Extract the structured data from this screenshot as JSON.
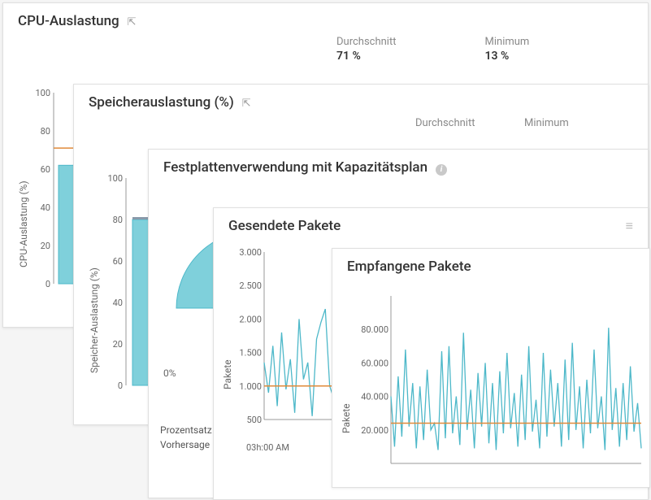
{
  "colors": {
    "series": "#4db8c9",
    "series_fill": "#7fd0db",
    "avg_line": "#e08a3a",
    "axis": "#999999",
    "bg": "#ffffff"
  },
  "card_cpu": {
    "title": "CPU-Auslastung",
    "stats": {
      "avg_label": "Durchschnitt",
      "avg_value": "71 %",
      "min_label": "Minimum",
      "min_value": "13 %"
    },
    "ylabel": "CPU-Auslastung (%)",
    "chart": {
      "type": "bar",
      "ylim": [
        0,
        100
      ],
      "yticks": [
        0,
        20,
        40,
        60,
        80,
        100
      ],
      "bar_value": 62,
      "avg_line": 71
    }
  },
  "card_mem": {
    "title": "Speicherauslastung (%)",
    "stats": {
      "avg_label": "Durchschnitt",
      "min_label": "Minimum"
    },
    "ylabel": "Speicher-Auslastung (%)",
    "chart": {
      "type": "bar",
      "ylim": [
        0,
        100
      ],
      "yticks": [
        0,
        20,
        40,
        60,
        80,
        100
      ],
      "bar_value": 80
    }
  },
  "card_disk": {
    "title": "Festplattenverwendung mit Kapazitätsplan",
    "zero_pct": "0%",
    "legend1": "Prozentsatz",
    "legend2": "Vorhersage"
  },
  "card_sent": {
    "title": "Gesendete Pakete",
    "ylabel": "Pakete",
    "chart": {
      "type": "line",
      "ylim": [
        500,
        3000
      ],
      "yticks": [
        500,
        1000,
        1500,
        2000,
        2500,
        3000
      ],
      "avg_line": 1000,
      "values": [
        1350,
        900,
        1600,
        700,
        1800,
        950,
        1400,
        600,
        2000,
        1100,
        1350,
        550,
        1700,
        1950,
        2150,
        1000,
        800
      ]
    },
    "xtick": "03h:00 AM"
  },
  "card_recv": {
    "title": "Empfangene Pakete",
    "ylabel": "Pakete",
    "chart": {
      "type": "line",
      "ylim": [
        0,
        100000
      ],
      "yticks": [
        20000,
        40000,
        60000,
        80000
      ],
      "ytick_labels": [
        "20.000",
        "40.000",
        "60.000",
        "80.000"
      ],
      "avg_line": 24000,
      "values": [
        40000,
        10000,
        52000,
        16000,
        68000,
        22000,
        48000,
        9000,
        46000,
        14000,
        56000,
        20000,
        24000,
        8000,
        67000,
        15000,
        70000,
        18000,
        40000,
        11000,
        78000,
        20000,
        44000,
        9000,
        54000,
        22000,
        60000,
        12000,
        48000,
        8000,
        55000,
        18000,
        66000,
        21000,
        42000,
        10000,
        53000,
        14000,
        70000,
        19000,
        38000,
        9000,
        66000,
        16000,
        56000,
        22000,
        48000,
        10000,
        62000,
        14000,
        72000,
        20000,
        46000,
        9000,
        50000,
        18000,
        68000,
        21000,
        40000,
        8000,
        81000,
        20000,
        45000,
        10000,
        48000,
        14000,
        58000,
        19000,
        36000,
        9000
      ]
    }
  }
}
